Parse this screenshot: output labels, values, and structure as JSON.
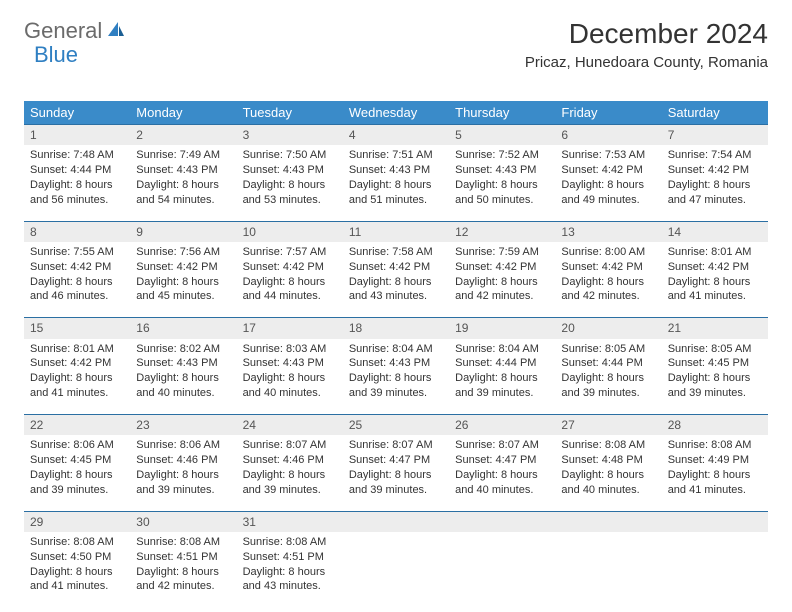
{
  "brand": {
    "part1": "General",
    "part2": "Blue"
  },
  "title": "December 2024",
  "location": "Pricaz, Hunedoara County, Romania",
  "colors": {
    "header_bg": "#3a8bc9",
    "header_text": "#ffffff",
    "daynum_bg": "#ededed",
    "row_border": "#2b6fa3",
    "body_text": "#333333",
    "logo_gray": "#6b6b6b",
    "logo_blue": "#2f7fc2"
  },
  "typography": {
    "title_fontsize": 28,
    "location_fontsize": 15,
    "header_fontsize": 13,
    "daynum_fontsize": 12,
    "cell_fontsize": 11
  },
  "weekdays": [
    "Sunday",
    "Monday",
    "Tuesday",
    "Wednesday",
    "Thursday",
    "Friday",
    "Saturday"
  ],
  "weeks": [
    [
      {
        "day": "1",
        "sunrise": "7:48 AM",
        "sunset": "4:44 PM",
        "daylight": "8 hours and 56 minutes."
      },
      {
        "day": "2",
        "sunrise": "7:49 AM",
        "sunset": "4:43 PM",
        "daylight": "8 hours and 54 minutes."
      },
      {
        "day": "3",
        "sunrise": "7:50 AM",
        "sunset": "4:43 PM",
        "daylight": "8 hours and 53 minutes."
      },
      {
        "day": "4",
        "sunrise": "7:51 AM",
        "sunset": "4:43 PM",
        "daylight": "8 hours and 51 minutes."
      },
      {
        "day": "5",
        "sunrise": "7:52 AM",
        "sunset": "4:43 PM",
        "daylight": "8 hours and 50 minutes."
      },
      {
        "day": "6",
        "sunrise": "7:53 AM",
        "sunset": "4:42 PM",
        "daylight": "8 hours and 49 minutes."
      },
      {
        "day": "7",
        "sunrise": "7:54 AM",
        "sunset": "4:42 PM",
        "daylight": "8 hours and 47 minutes."
      }
    ],
    [
      {
        "day": "8",
        "sunrise": "7:55 AM",
        "sunset": "4:42 PM",
        "daylight": "8 hours and 46 minutes."
      },
      {
        "day": "9",
        "sunrise": "7:56 AM",
        "sunset": "4:42 PM",
        "daylight": "8 hours and 45 minutes."
      },
      {
        "day": "10",
        "sunrise": "7:57 AM",
        "sunset": "4:42 PM",
        "daylight": "8 hours and 44 minutes."
      },
      {
        "day": "11",
        "sunrise": "7:58 AM",
        "sunset": "4:42 PM",
        "daylight": "8 hours and 43 minutes."
      },
      {
        "day": "12",
        "sunrise": "7:59 AM",
        "sunset": "4:42 PM",
        "daylight": "8 hours and 42 minutes."
      },
      {
        "day": "13",
        "sunrise": "8:00 AM",
        "sunset": "4:42 PM",
        "daylight": "8 hours and 42 minutes."
      },
      {
        "day": "14",
        "sunrise": "8:01 AM",
        "sunset": "4:42 PM",
        "daylight": "8 hours and 41 minutes."
      }
    ],
    [
      {
        "day": "15",
        "sunrise": "8:01 AM",
        "sunset": "4:42 PM",
        "daylight": "8 hours and 41 minutes."
      },
      {
        "day": "16",
        "sunrise": "8:02 AM",
        "sunset": "4:43 PM",
        "daylight": "8 hours and 40 minutes."
      },
      {
        "day": "17",
        "sunrise": "8:03 AM",
        "sunset": "4:43 PM",
        "daylight": "8 hours and 40 minutes."
      },
      {
        "day": "18",
        "sunrise": "8:04 AM",
        "sunset": "4:43 PM",
        "daylight": "8 hours and 39 minutes."
      },
      {
        "day": "19",
        "sunrise": "8:04 AM",
        "sunset": "4:44 PM",
        "daylight": "8 hours and 39 minutes."
      },
      {
        "day": "20",
        "sunrise": "8:05 AM",
        "sunset": "4:44 PM",
        "daylight": "8 hours and 39 minutes."
      },
      {
        "day": "21",
        "sunrise": "8:05 AM",
        "sunset": "4:45 PM",
        "daylight": "8 hours and 39 minutes."
      }
    ],
    [
      {
        "day": "22",
        "sunrise": "8:06 AM",
        "sunset": "4:45 PM",
        "daylight": "8 hours and 39 minutes."
      },
      {
        "day": "23",
        "sunrise": "8:06 AM",
        "sunset": "4:46 PM",
        "daylight": "8 hours and 39 minutes."
      },
      {
        "day": "24",
        "sunrise": "8:07 AM",
        "sunset": "4:46 PM",
        "daylight": "8 hours and 39 minutes."
      },
      {
        "day": "25",
        "sunrise": "8:07 AM",
        "sunset": "4:47 PM",
        "daylight": "8 hours and 39 minutes."
      },
      {
        "day": "26",
        "sunrise": "8:07 AM",
        "sunset": "4:47 PM",
        "daylight": "8 hours and 40 minutes."
      },
      {
        "day": "27",
        "sunrise": "8:08 AM",
        "sunset": "4:48 PM",
        "daylight": "8 hours and 40 minutes."
      },
      {
        "day": "28",
        "sunrise": "8:08 AM",
        "sunset": "4:49 PM",
        "daylight": "8 hours and 41 minutes."
      }
    ],
    [
      {
        "day": "29",
        "sunrise": "8:08 AM",
        "sunset": "4:50 PM",
        "daylight": "8 hours and 41 minutes."
      },
      {
        "day": "30",
        "sunrise": "8:08 AM",
        "sunset": "4:51 PM",
        "daylight": "8 hours and 42 minutes."
      },
      {
        "day": "31",
        "sunrise": "8:08 AM",
        "sunset": "4:51 PM",
        "daylight": "8 hours and 43 minutes."
      },
      null,
      null,
      null,
      null
    ]
  ],
  "labels": {
    "sunrise": "Sunrise:",
    "sunset": "Sunset:",
    "daylight": "Daylight:"
  }
}
